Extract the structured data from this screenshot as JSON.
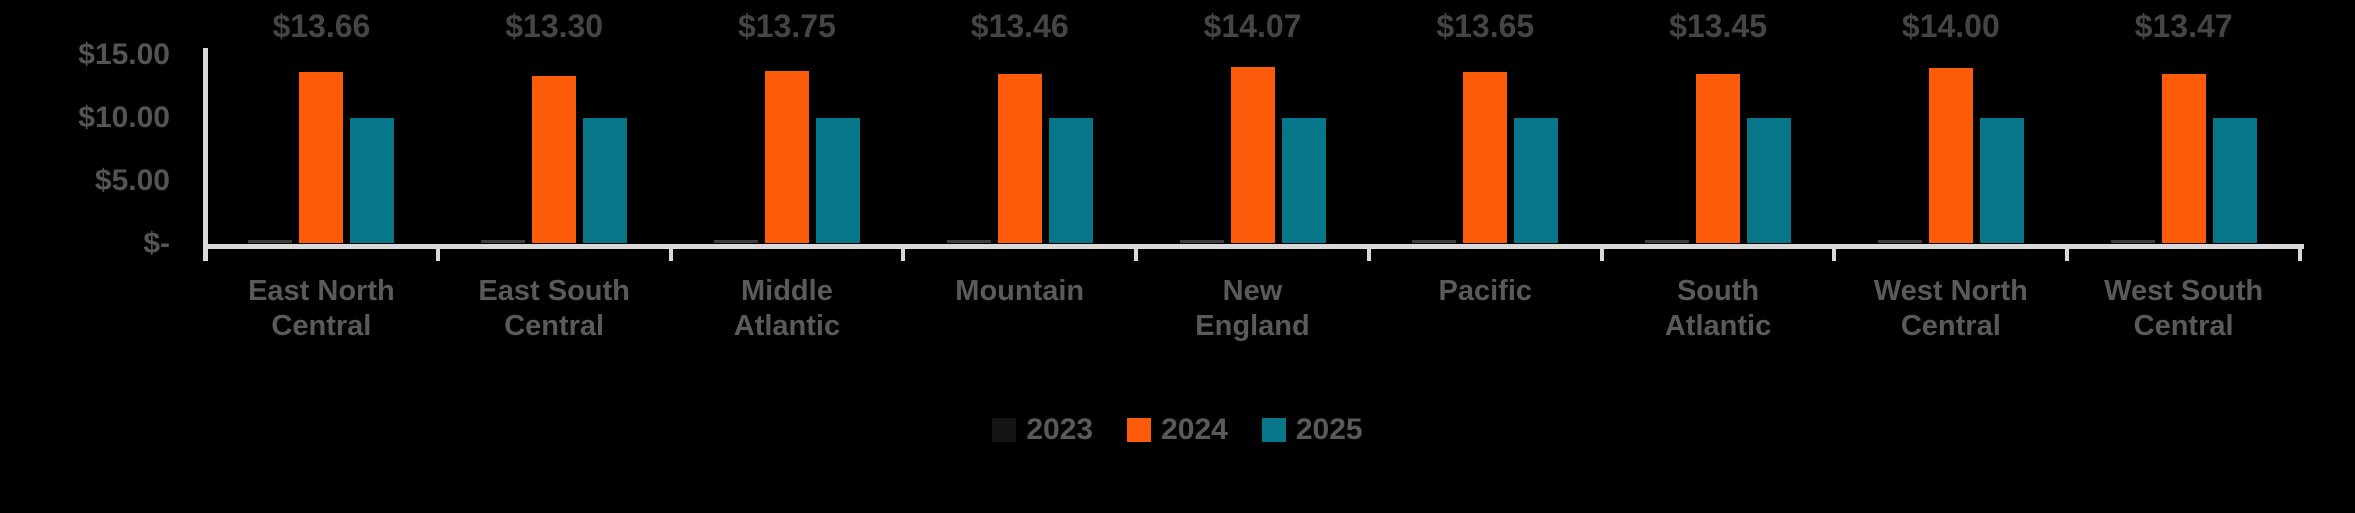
{
  "chart_data": {
    "type": "bar",
    "title": "",
    "xlabel": "",
    "ylabel": "",
    "categories": [
      "East North Central",
      "East South Central",
      "Middle Atlantic",
      "Mountain",
      "New England",
      "Pacific",
      "South Atlantic",
      "West North Central",
      "West South Central"
    ],
    "category_lines": [
      [
        "East North",
        "Central"
      ],
      [
        "East South",
        "Central"
      ],
      [
        "Middle",
        "Atlantic"
      ],
      [
        "Mountain"
      ],
      [
        "New",
        "England"
      ],
      [
        "Pacific"
      ],
      [
        "South",
        "Atlantic"
      ],
      [
        "West North",
        "Central"
      ],
      [
        "West South",
        "Central"
      ]
    ],
    "series": [
      {
        "name": "2023",
        "values": [
          0.25,
          0.25,
          0.25,
          0.25,
          0.25,
          0.25,
          0.25,
          0.25,
          0.25
        ],
        "color": "#3d3d3d",
        "legend_marker_color": "#141414",
        "data_labels": null
      },
      {
        "name": "2024",
        "values": [
          13.66,
          13.3,
          13.75,
          13.46,
          14.07,
          13.65,
          13.45,
          14.0,
          13.47
        ],
        "color": "#FC5B0A",
        "legend_marker_color": "#FC5B0A",
        "data_labels": [
          "$13.66",
          "$13.30",
          "$13.75",
          "$13.46",
          "$14.07",
          "$13.65",
          "$13.45",
          "$14.00",
          "$13.47"
        ]
      },
      {
        "name": "2025",
        "values": [
          10.0,
          10.0,
          10.0,
          10.0,
          10.0,
          10.0,
          10.0,
          10.0,
          10.0
        ],
        "color": "#077689",
        "legend_marker_color": "#077689",
        "data_labels": null
      }
    ],
    "ylim": [
      0,
      15
    ],
    "y_tick_labels": [
      "$15.00",
      "$10.00",
      "$5.00",
      "$-"
    ],
    "y_tick_values": [
      15,
      10,
      5,
      0
    ],
    "grid": false,
    "legend_position": "bottom-center"
  },
  "colors": {
    "background": "#000000",
    "axis_line": "#D9D9D9",
    "axis_label_text": "#545454",
    "category_label_text": "#5A5A5A",
    "data_label_text": "#454545",
    "legend_text": "#5A5A5A"
  },
  "legend": {
    "items": [
      "2023",
      "2024",
      "2025"
    ]
  }
}
